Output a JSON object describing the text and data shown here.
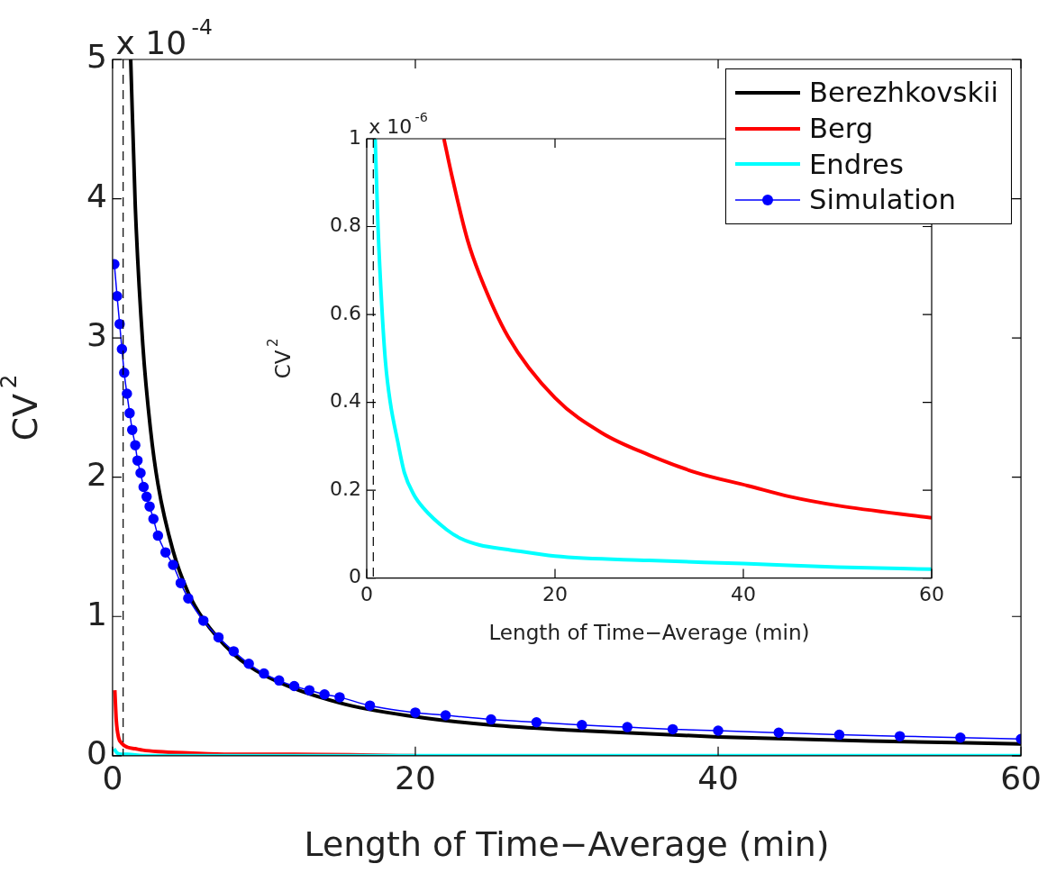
{
  "chart_data": [
    {
      "type": "line",
      "xlabel": "Length of Time−Average (min)",
      "ylabel": "CV$^{2}$",
      "annotations": [
        "x 10$^{-4}$"
      ],
      "xlim": [
        0,
        60
      ],
      "ylim": [
        0,
        5
      ],
      "xticks": [
        0,
        20,
        40,
        60
      ],
      "yticks": [
        0,
        1,
        2,
        3,
        4,
        5
      ],
      "grid": false,
      "legend": "top right",
      "ref_lines": [
        {
          "axis": "x",
          "value": 0.7,
          "color": "#000000",
          "line_style": "dashed"
        }
      ],
      "series": [
        {
          "name": "Berezhkovskii",
          "color": "#000000",
          "marker": "none",
          "x": [
            1.2,
            1.5,
            2,
            2.5,
            3,
            4,
            5,
            6,
            8,
            10,
            15,
            20,
            25,
            30,
            40,
            50,
            60
          ],
          "values": [
            5.0,
            3.95,
            2.95,
            2.35,
            1.95,
            1.47,
            1.17,
            0.98,
            0.73,
            0.58,
            0.38,
            0.28,
            0.22,
            0.185,
            0.135,
            0.105,
            0.085
          ]
        },
        {
          "name": "Berg",
          "color": "#ff0000",
          "marker": "none",
          "x": [
            0.15,
            0.25,
            0.4,
            0.6,
            1,
            1.5,
            2,
            3,
            5,
            8,
            12,
            20
          ],
          "values": [
            0.47,
            0.25,
            0.13,
            0.09,
            0.06,
            0.05,
            0.04,
            0.03,
            0.02,
            0.01,
            0.01,
            0
          ]
        },
        {
          "name": "Endres",
          "color": "#00ffff",
          "marker": "none",
          "x": [
            0.1,
            0.3,
            0.6,
            1,
            2,
            4,
            10,
            30,
            60
          ],
          "values": [
            0.05,
            0.02,
            0.01,
            0.01,
            0,
            0,
            0,
            0,
            0
          ]
        },
        {
          "name": "Simulation",
          "color": "#0000ff",
          "marker": "circle",
          "x": [
            0.12,
            0.3,
            0.47,
            0.62,
            0.77,
            0.95,
            1.13,
            1.3,
            1.5,
            1.65,
            1.85,
            2.05,
            2.25,
            2.45,
            2.7,
            3,
            3.5,
            4,
            4.5,
            5,
            6,
            7,
            8,
            9,
            10,
            11,
            12,
            13,
            14,
            15,
            17,
            20,
            22,
            25,
            28,
            31,
            34,
            37,
            40,
            44,
            48,
            52,
            56,
            60
          ],
          "values": [
            3.53,
            3.3,
            3.1,
            2.92,
            2.75,
            2.6,
            2.46,
            2.34,
            2.23,
            2.12,
            2.03,
            1.93,
            1.86,
            1.79,
            1.7,
            1.58,
            1.46,
            1.37,
            1.24,
            1.13,
            0.97,
            0.85,
            0.75,
            0.66,
            0.59,
            0.54,
            0.5,
            0.47,
            0.44,
            0.42,
            0.36,
            0.31,
            0.29,
            0.26,
            0.24,
            0.22,
            0.205,
            0.19,
            0.18,
            0.165,
            0.15,
            0.14,
            0.13,
            0.12
          ]
        }
      ]
    },
    {
      "type": "line",
      "xlabel": "Length of Time−Average (min)",
      "ylabel": "CV$^{2}$",
      "annotations": [
        "x 10$^{-6}$"
      ],
      "xlim": [
        0,
        60
      ],
      "ylim": [
        0,
        1
      ],
      "xticks": [
        0,
        20,
        40,
        60
      ],
      "yticks": [
        0,
        0.2,
        0.4,
        0.6,
        0.8,
        1
      ],
      "grid": false,
      "ref_lines": [
        {
          "axis": "x",
          "value": 0.7,
          "color": "#000000",
          "line_style": "dashed"
        }
      ],
      "series": [
        {
          "color": "#ff0000",
          "marker": "none",
          "x": [
            8.2,
            9,
            10.7,
            12,
            15,
            20,
            25,
            30,
            35,
            40.5,
            45,
            50,
            60
          ],
          "values": [
            1.0,
            0.92,
            0.77,
            0.69,
            0.55,
            0.41,
            0.33,
            0.28,
            0.24,
            0.21,
            0.185,
            0.165,
            0.137
          ]
        },
        {
          "color": "#00ffff",
          "marker": "none",
          "x": [
            0.9,
            1.2,
            1.6,
            2,
            2.5,
            3.3,
            4,
            5,
            6,
            8.5,
            10,
            12,
            15,
            20,
            30,
            40,
            50,
            60
          ],
          "values": [
            1.0,
            0.8,
            0.62,
            0.49,
            0.4,
            0.31,
            0.24,
            0.19,
            0.16,
            0.11,
            0.09,
            0.075,
            0.065,
            0.05,
            0.04,
            0.033,
            0.025,
            0.02
          ]
        }
      ]
    }
  ]
}
